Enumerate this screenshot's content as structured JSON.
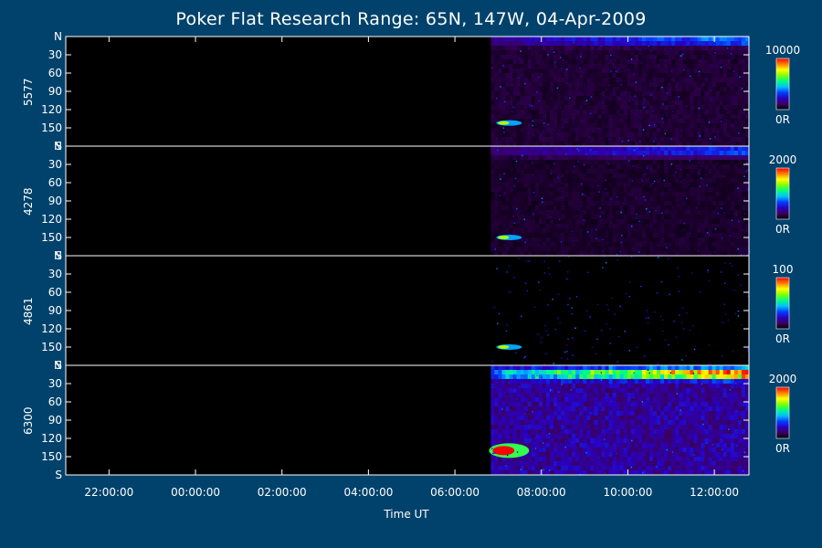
{
  "title": "Poker Flat Research Range: 65N, 147W, 04-Apr-2009",
  "xlabel": "Time UT",
  "chart_data": {
    "type": "heatmap",
    "title": "Poker Flat Research Range: 65N, 147W, 04-Apr-2009",
    "xlabel": "Time UT",
    "x_ticks": [
      "22:00:00",
      "00:00:00",
      "02:00:00",
      "04:00:00",
      "06:00:00",
      "08:00:00",
      "10:00:00",
      "12:00:00"
    ],
    "x_range_hours": [
      21.0,
      36.8
    ],
    "data_start_hour": 30.83,
    "y_ticks": [
      "N",
      "30",
      "60",
      "90",
      "120",
      "150",
      "S"
    ],
    "y_range": [
      0,
      180
    ],
    "panels": [
      {
        "name": "5577",
        "colorbar": {
          "max_label": "10000",
          "min_label": "0R"
        },
        "auroral_band_elevation": 6,
        "low_elevation_spot": 142,
        "band_strength": 0.45,
        "background_level": 0.06
      },
      {
        "name": "4278",
        "colorbar": {
          "max_label": "2000",
          "min_label": "0R"
        },
        "auroral_band_elevation": 8,
        "low_elevation_spot": 150,
        "band_strength": 0.4,
        "background_level": 0.05
      },
      {
        "name": "4861",
        "colorbar": {
          "max_label": "100",
          "min_label": "0R"
        },
        "auroral_band_elevation": 0,
        "low_elevation_spot": 150,
        "band_strength": 0.0,
        "background_level": 0.02
      },
      {
        "name": "6300",
        "colorbar": {
          "max_label": "2000",
          "min_label": "0R"
        },
        "auroral_band_elevation": 14,
        "low_elevation_spot": 140,
        "band_strength": 1.0,
        "background_level": 0.18
      }
    ],
    "colormap": [
      "#000000",
      "#3a0060",
      "#2a00c0",
      "#0040ff",
      "#00c0ff",
      "#00ff80",
      "#80ff00",
      "#ffff00",
      "#ff8000",
      "#ff0000"
    ]
  }
}
